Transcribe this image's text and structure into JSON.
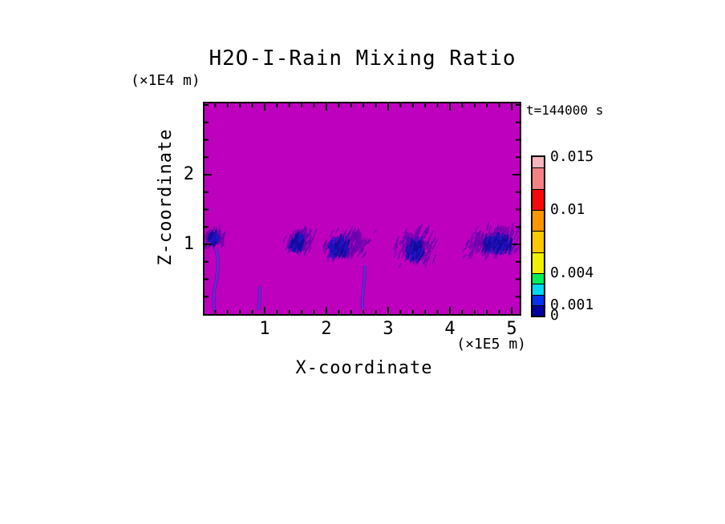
{
  "page": {
    "background": "#ffffff"
  },
  "chart_data": {
    "type": "heatmap",
    "title": "H2O-I-Rain Mixing Ratio",
    "time_annotation": "t=144000 s",
    "xlabel": "X-coordinate",
    "ylabel": "Z-coordinate",
    "x_units_label": "(×1E5 m)",
    "y_units_label": "(×1E4 m)",
    "xlim": [
      0,
      5.13
    ],
    "ylim": [
      0,
      3.02
    ],
    "x_major_ticks": [
      1,
      2,
      3,
      4,
      5
    ],
    "x_minor_step": 0.2,
    "y_major_ticks": [
      1,
      2
    ],
    "y_minor_step": 0.25,
    "field_background": {
      "value": 0,
      "color": "#BE00BE"
    },
    "colorbar": {
      "min": 0,
      "max": 0.015,
      "levels": [
        0,
        0.001,
        0.002,
        0.003,
        0.004,
        0.006,
        0.008,
        0.01,
        0.012,
        0.014,
        0.015
      ],
      "colors_bottom_to_top": [
        "#0000A0",
        "#0532F0",
        "#00D8F0",
        "#00F05A",
        "#F0F000",
        "#FFC800",
        "#FF9600",
        "#F50A0A",
        "#F58282",
        "#F5B4BE"
      ],
      "labels": [
        {
          "value": 0,
          "text": "0"
        },
        {
          "value": 0.001,
          "text": "0.001"
        },
        {
          "value": 0.004,
          "text": "0.004"
        },
        {
          "value": 0.01,
          "text": "0.01"
        },
        {
          "value": 0.015,
          "text": "0.015"
        }
      ]
    },
    "rain_features": {
      "halo_color": "#6C00AE",
      "core_color": "#2114C8",
      "core_color_dark": "#150A9B",
      "streak_color": "#4A3AD8",
      "plumes": [
        {
          "cx": 0.17,
          "cz": 1.06,
          "rx": 0.18,
          "rz": 0.15,
          "coreDx": -0.02,
          "coreDy": -0.02,
          "coreRx": 0.5,
          "coreRz": 0.6,
          "skew": 0.2,
          "n": 80,
          "seed": 11
        },
        {
          "cx": 1.53,
          "cz": 1.0,
          "rx": 0.25,
          "rz": 0.2,
          "coreDx": -0.02,
          "coreDy": -0.03,
          "coreRx": 0.5,
          "coreRz": 0.6,
          "skew": 0.3,
          "n": 130,
          "seed": 22
        },
        {
          "cx": 2.28,
          "cz": 0.95,
          "rx": 0.38,
          "rz": 0.24,
          "coreDx": -0.1,
          "coreDy": -0.05,
          "coreRx": 0.45,
          "coreRz": 0.6,
          "skew": 0.55,
          "n": 190,
          "seed": 33
        },
        {
          "cx": 3.42,
          "cz": 0.93,
          "rx": 0.37,
          "rz": 0.28,
          "coreDx": 0.0,
          "coreDy": -0.06,
          "coreRx": 0.4,
          "coreRz": 0.55,
          "skew": 0.2,
          "n": 180,
          "seed": 44
        },
        {
          "cx": 4.65,
          "cz": 1.0,
          "rx": 0.48,
          "rz": 0.24,
          "coreDx": 0.09,
          "coreDy": -0.04,
          "coreRx": 0.55,
          "coreRz": 0.6,
          "skew": 0.45,
          "n": 220,
          "seed": 55
        }
      ],
      "streaks": [
        {
          "x": 0.21,
          "zTop": 0.95,
          "zBot": 0.03,
          "amp": 2.5,
          "seed": 7
        },
        {
          "x": 0.9,
          "zTop": 0.4,
          "zBot": 0.02,
          "amp": 1.5,
          "seed": 8
        },
        {
          "x": 2.6,
          "zTop": 0.7,
          "zBot": 0.02,
          "amp": 1.5,
          "seed": 9
        }
      ]
    }
  }
}
